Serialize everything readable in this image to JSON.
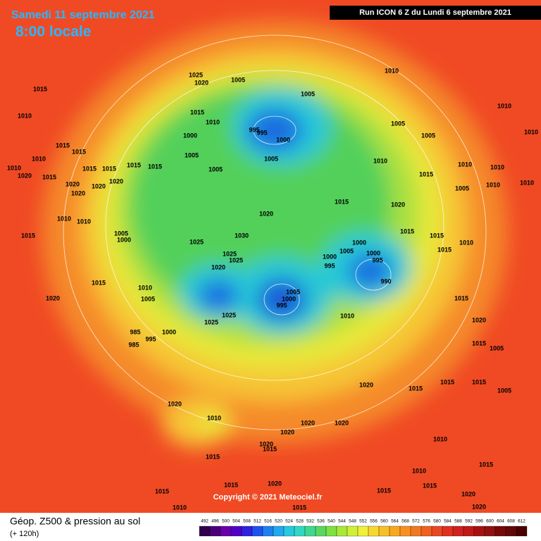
{
  "header": {
    "date": "Samedi 11 septembre 2021",
    "time": "8:00 locale",
    "run": "Run ICON 6 Z du Lundi 6 septembre 2021"
  },
  "copyright": "Copyright © 2021 Meteociel.fr",
  "legend": {
    "title": "Géop. Z500 & pression au sol",
    "lead": "(+ 120h)",
    "scale": [
      492,
      496,
      500,
      504,
      508,
      512,
      516,
      520,
      524,
      528,
      532,
      536,
      540,
      544,
      548,
      552,
      556,
      560,
      564,
      568,
      572,
      576,
      580,
      584,
      588,
      592,
      596,
      600,
      604,
      608,
      612
    ]
  },
  "isobar_labels": [
    "1025",
    "1020",
    "1005",
    "1015",
    "1010",
    "1005",
    "1015",
    "1010",
    "995",
    "995",
    "1000",
    "1005",
    "1005",
    "1010",
    "1010",
    "1010",
    "1015",
    "1015",
    "1000",
    "1005",
    "1005",
    "1005",
    "1010",
    "1015",
    "1010",
    "1010",
    "1010",
    "1010",
    "1015",
    "1015",
    "1015",
    "1015",
    "1020",
    "1020",
    "1020",
    "1020",
    "1020",
    "1015",
    "1005",
    "1010",
    "1010",
    "1015",
    "1020",
    "1020",
    "1010",
    "1010",
    "1015",
    "1005",
    "1000",
    "1030",
    "1025",
    "1000",
    "1000",
    "995",
    "1000",
    "995",
    "1005",
    "1015",
    "1015",
    "1010",
    "1015",
    "990",
    "1025",
    "1025",
    "1020",
    "1015",
    "1010",
    "1005",
    "1020",
    "1005",
    "1000",
    "995",
    "1025",
    "1025",
    "985",
    "1000",
    "995",
    "985",
    "1010",
    "1015",
    "1020",
    "1015",
    "1005",
    "1020",
    "1015",
    "1015",
    "1015",
    "1005",
    "1010",
    "1020",
    "1020",
    "1020",
    "1020",
    "1020",
    "1015",
    "1015",
    "1010",
    "1010",
    "1015",
    "1015",
    "1020",
    "1015",
    "1015",
    "1020",
    "1020",
    "1015",
    "1010",
    "1015"
  ]
}
